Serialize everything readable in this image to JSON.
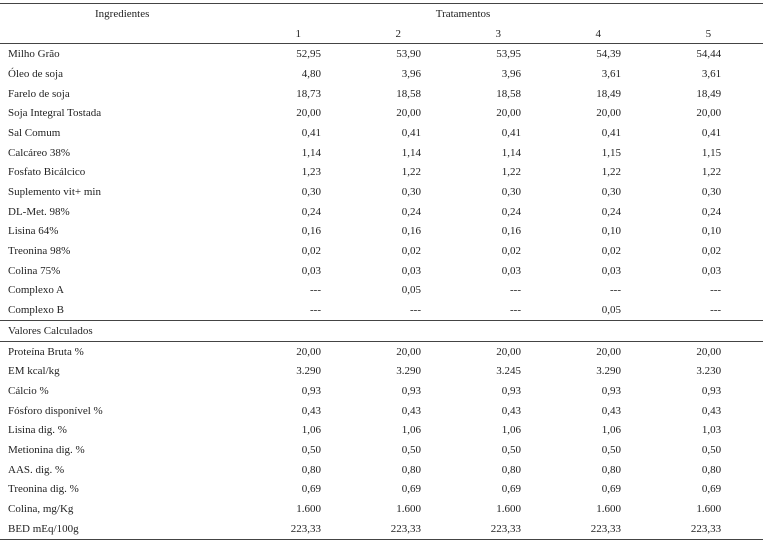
{
  "header": {
    "ingredients_label": "Ingredientes",
    "treatments_label": "Tratamentos",
    "treatments": [
      "1",
      "2",
      "3",
      "4",
      "5"
    ]
  },
  "ingredients": [
    {
      "label": "Milho Grão",
      "values": [
        "52,95",
        "53,90",
        "53,95",
        "54,39",
        "54,44"
      ]
    },
    {
      "label": "Óleo de soja",
      "values": [
        "4,80",
        "3,96",
        "3,96",
        "3,61",
        "3,61"
      ]
    },
    {
      "label": "Farelo de soja",
      "values": [
        "18,73",
        "18,58",
        "18,58",
        "18,49",
        "18,49"
      ]
    },
    {
      "label": "Soja Integral Tostada",
      "values": [
        "20,00",
        "20,00",
        "20,00",
        "20,00",
        "20,00"
      ]
    },
    {
      "label": "Sal Comum",
      "values": [
        "0,41",
        "0,41",
        "0,41",
        "0,41",
        "0,41"
      ]
    },
    {
      "label": "Calcáreo 38%",
      "values": [
        "1,14",
        "1,14",
        "1,14",
        "1,15",
        "1,15"
      ]
    },
    {
      "label": "Fosfato Bicálcico",
      "values": [
        "1,23",
        "1,22",
        "1,22",
        "1,22",
        "1,22"
      ]
    },
    {
      "label": "Suplemento vit+ min",
      "values": [
        "0,30",
        "0,30",
        "0,30",
        "0,30",
        "0,30"
      ]
    },
    {
      "label": "DL-Met. 98%",
      "values": [
        "0,24",
        "0,24",
        "0,24",
        "0,24",
        "0,24"
      ]
    },
    {
      "label": "Lisina 64%",
      "values": [
        "0,16",
        "0,16",
        "0,16",
        "0,10",
        "0,10"
      ]
    },
    {
      "label": "Treonina 98%",
      "values": [
        "0,02",
        "0,02",
        "0,02",
        "0,02",
        "0,02"
      ]
    },
    {
      "label": "Colina 75%",
      "values": [
        "0,03",
        "0,03",
        "0,03",
        "0,03",
        "0,03"
      ]
    },
    {
      "label": "Complexo A",
      "values": [
        "---",
        "0,05",
        "---",
        "---",
        "---"
      ]
    },
    {
      "label": "Complexo B",
      "values": [
        "---",
        "---",
        "---",
        "0,05",
        "---"
      ]
    }
  ],
  "section_title": "Valores Calculados",
  "calculated": [
    {
      "label": "Proteína Bruta %",
      "values": [
        "20,00",
        "20,00",
        "20,00",
        "20,00",
        "20,00"
      ]
    },
    {
      "label": "EM kcal/kg",
      "values": [
        "3.290",
        "3.290",
        "3.245",
        "3.290",
        "3.230"
      ]
    },
    {
      "label": "Cálcio %",
      "values": [
        "0,93",
        "0,93",
        "0,93",
        "0,93",
        "0,93"
      ]
    },
    {
      "label": "Fósforo disponível %",
      "values": [
        "0,43",
        "0,43",
        "0,43",
        "0,43",
        "0,43"
      ]
    },
    {
      "label": "Lisina dig. %",
      "values": [
        "1,06",
        "1,06",
        "1,06",
        "1,06",
        "1,03"
      ]
    },
    {
      "label": "Metionina dig. %",
      "values": [
        "0,50",
        "0,50",
        "0,50",
        "0,50",
        "0,50"
      ]
    },
    {
      "label": "AAS. dig. %",
      "values": [
        "0,80",
        "0,80",
        "0,80",
        "0,80",
        "0,80"
      ]
    },
    {
      "label": "Treonina dig. %",
      "values": [
        "0,69",
        "0,69",
        "0,69",
        "0,69",
        "0,69"
      ]
    },
    {
      "label": "Colina, mg/Kg",
      "values": [
        "1.600",
        "1.600",
        "1.600",
        "1.600",
        "1.600"
      ]
    },
    {
      "label": "BED mEq/100g",
      "values": [
        "223,33",
        "223,33",
        "223,33",
        "223,33",
        "223,33"
      ]
    }
  ]
}
